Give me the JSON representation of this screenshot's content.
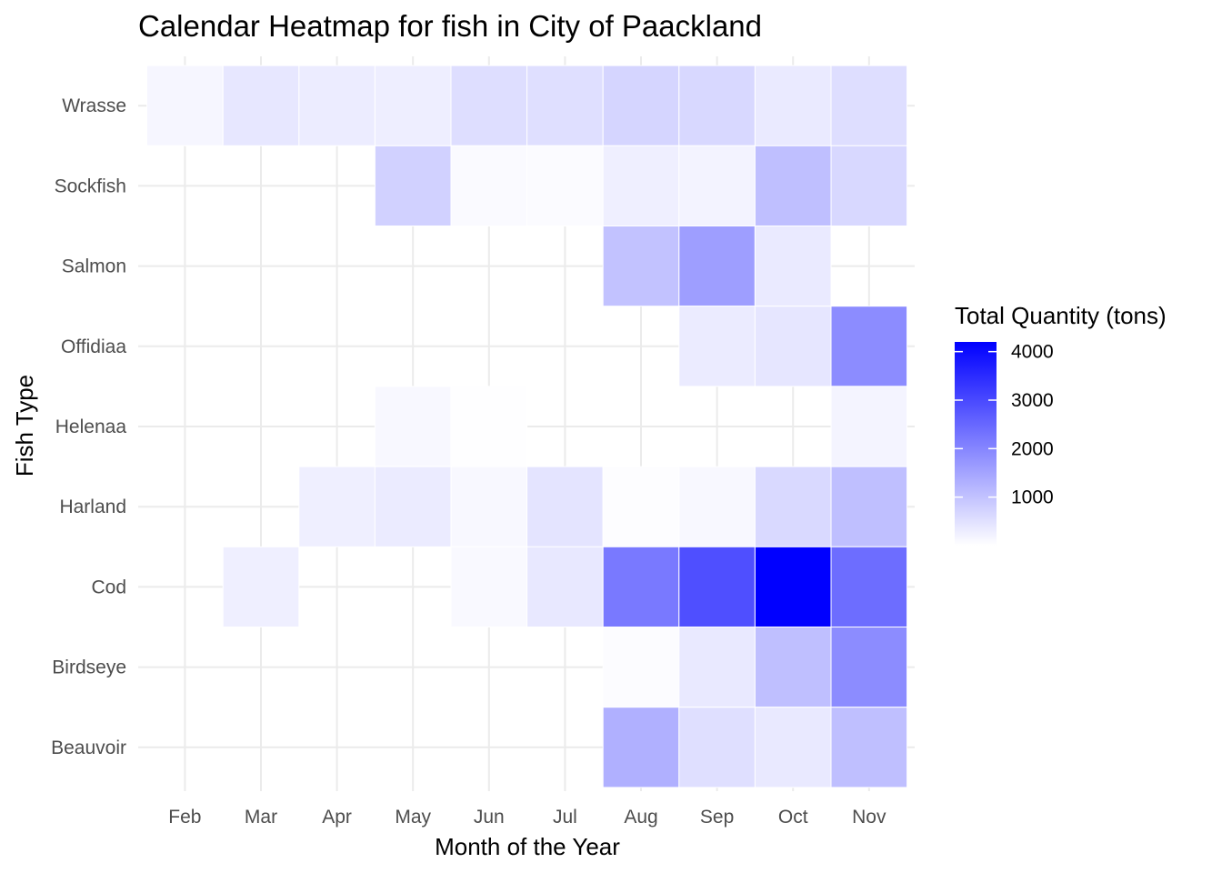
{
  "chart_data": {
    "type": "heatmap",
    "title": "Calendar Heatmap for fish in City of Paackland",
    "xlabel": "Month of the Year",
    "ylabel": "Fish Type",
    "x_categories": [
      "Feb",
      "Mar",
      "Apr",
      "May",
      "Jun",
      "Jul",
      "Aug",
      "Sep",
      "Oct",
      "Nov"
    ],
    "y_categories": [
      "Wrasse",
      "Sockfish",
      "Salmon",
      "Offidiaa",
      "Helenaa",
      "Harland",
      "Cod",
      "Birdseye",
      "Beauvoir"
    ],
    "cells": [
      {
        "x": "Feb",
        "y": "Wrasse",
        "value": 150
      },
      {
        "x": "Mar",
        "y": "Wrasse",
        "value": 400
      },
      {
        "x": "Apr",
        "y": "Wrasse",
        "value": 320
      },
      {
        "x": "May",
        "y": "Wrasse",
        "value": 280
      },
      {
        "x": "Jun",
        "y": "Wrasse",
        "value": 550
      },
      {
        "x": "Jul",
        "y": "Wrasse",
        "value": 520
      },
      {
        "x": "Aug",
        "y": "Wrasse",
        "value": 700
      },
      {
        "x": "Sep",
        "y": "Wrasse",
        "value": 650
      },
      {
        "x": "Oct",
        "y": "Wrasse",
        "value": 350
      },
      {
        "x": "Nov",
        "y": "Wrasse",
        "value": 550
      },
      {
        "x": "May",
        "y": "Sockfish",
        "value": 750
      },
      {
        "x": "Jun",
        "y": "Sockfish",
        "value": 80
      },
      {
        "x": "Jul",
        "y": "Sockfish",
        "value": 60
      },
      {
        "x": "Aug",
        "y": "Sockfish",
        "value": 260
      },
      {
        "x": "Sep",
        "y": "Sockfish",
        "value": 200
      },
      {
        "x": "Oct",
        "y": "Sockfish",
        "value": 1050
      },
      {
        "x": "Nov",
        "y": "Sockfish",
        "value": 650
      },
      {
        "x": "Aug",
        "y": "Salmon",
        "value": 1000
      },
      {
        "x": "Sep",
        "y": "Salmon",
        "value": 1600
      },
      {
        "x": "Oct",
        "y": "Salmon",
        "value": 350
      },
      {
        "x": "Sep",
        "y": "Offidiaa",
        "value": 330
      },
      {
        "x": "Oct",
        "y": "Offidiaa",
        "value": 420
      },
      {
        "x": "Nov",
        "y": "Offidiaa",
        "value": 1900
      },
      {
        "x": "May",
        "y": "Helenaa",
        "value": 120
      },
      {
        "x": "Jun",
        "y": "Helenaa",
        "value": 15
      },
      {
        "x": "Nov",
        "y": "Helenaa",
        "value": 180
      },
      {
        "x": "Apr",
        "y": "Harland",
        "value": 270
      },
      {
        "x": "May",
        "y": "Harland",
        "value": 330
      },
      {
        "x": "Jun",
        "y": "Harland",
        "value": 120
      },
      {
        "x": "Jul",
        "y": "Harland",
        "value": 450
      },
      {
        "x": "Aug",
        "y": "Harland",
        "value": 40
      },
      {
        "x": "Sep",
        "y": "Harland",
        "value": 120
      },
      {
        "x": "Oct",
        "y": "Harland",
        "value": 620
      },
      {
        "x": "Nov",
        "y": "Harland",
        "value": 1050
      },
      {
        "x": "Mar",
        "y": "Cod",
        "value": 260
      },
      {
        "x": "Jun",
        "y": "Cod",
        "value": 100
      },
      {
        "x": "Jul",
        "y": "Cod",
        "value": 380
      },
      {
        "x": "Aug",
        "y": "Cod",
        "value": 2200
      },
      {
        "x": "Sep",
        "y": "Cod",
        "value": 2900
      },
      {
        "x": "Oct",
        "y": "Cod",
        "value": 4200
      },
      {
        "x": "Nov",
        "y": "Cod",
        "value": 2400
      },
      {
        "x": "Aug",
        "y": "Birdseye",
        "value": 50
      },
      {
        "x": "Sep",
        "y": "Birdseye",
        "value": 370
      },
      {
        "x": "Oct",
        "y": "Birdseye",
        "value": 1050
      },
      {
        "x": "Nov",
        "y": "Birdseye",
        "value": 1900
      },
      {
        "x": "Aug",
        "y": "Beauvoir",
        "value": 1300
      },
      {
        "x": "Sep",
        "y": "Beauvoir",
        "value": 530
      },
      {
        "x": "Oct",
        "y": "Beauvoir",
        "value": 370
      },
      {
        "x": "Nov",
        "y": "Beauvoir",
        "value": 1050
      }
    ],
    "legend": {
      "title": "Total Quantity (tons)",
      "placement": "right",
      "ticks": [
        1000,
        2000,
        3000,
        4000
      ],
      "tick_labels": [
        "1000",
        "2000",
        "3000",
        "4000"
      ],
      "range": [
        0,
        4200
      ]
    },
    "color_low": "#ffffff",
    "color_high": "#0000ff",
    "grid": true
  }
}
